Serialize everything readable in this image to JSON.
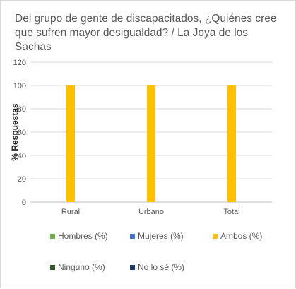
{
  "chart_data": {
    "type": "bar",
    "title": "Del grupo de gente de discapacitados, ¿Quiénes cree\nque sufren mayor desigualdad? / La Joya de los Sachas",
    "ylabel": "% Respuestas",
    "xlabel": "",
    "categories": [
      "Rural",
      "Urbano",
      "Total"
    ],
    "ylim": [
      0,
      120
    ],
    "yticks": [
      0,
      20,
      40,
      60,
      80,
      100,
      120
    ],
    "grid": true,
    "legend_position": "bottom",
    "series": [
      {
        "name": "Hombres (%)",
        "color": "#70ad47",
        "values": [
          0,
          0,
          0
        ]
      },
      {
        "name": "Mujeres (%)",
        "color": "#4472c4",
        "values": [
          0,
          0,
          0
        ]
      },
      {
        "name": "Ambos (%)",
        "color": "#ffc000",
        "values": [
          100,
          100,
          100
        ]
      },
      {
        "name": "Ninguno (%)",
        "color": "#375623",
        "values": [
          0,
          0,
          0
        ]
      },
      {
        "name": "No lo sé (%)",
        "color": "#203864",
        "values": [
          0,
          0,
          0
        ]
      }
    ]
  }
}
